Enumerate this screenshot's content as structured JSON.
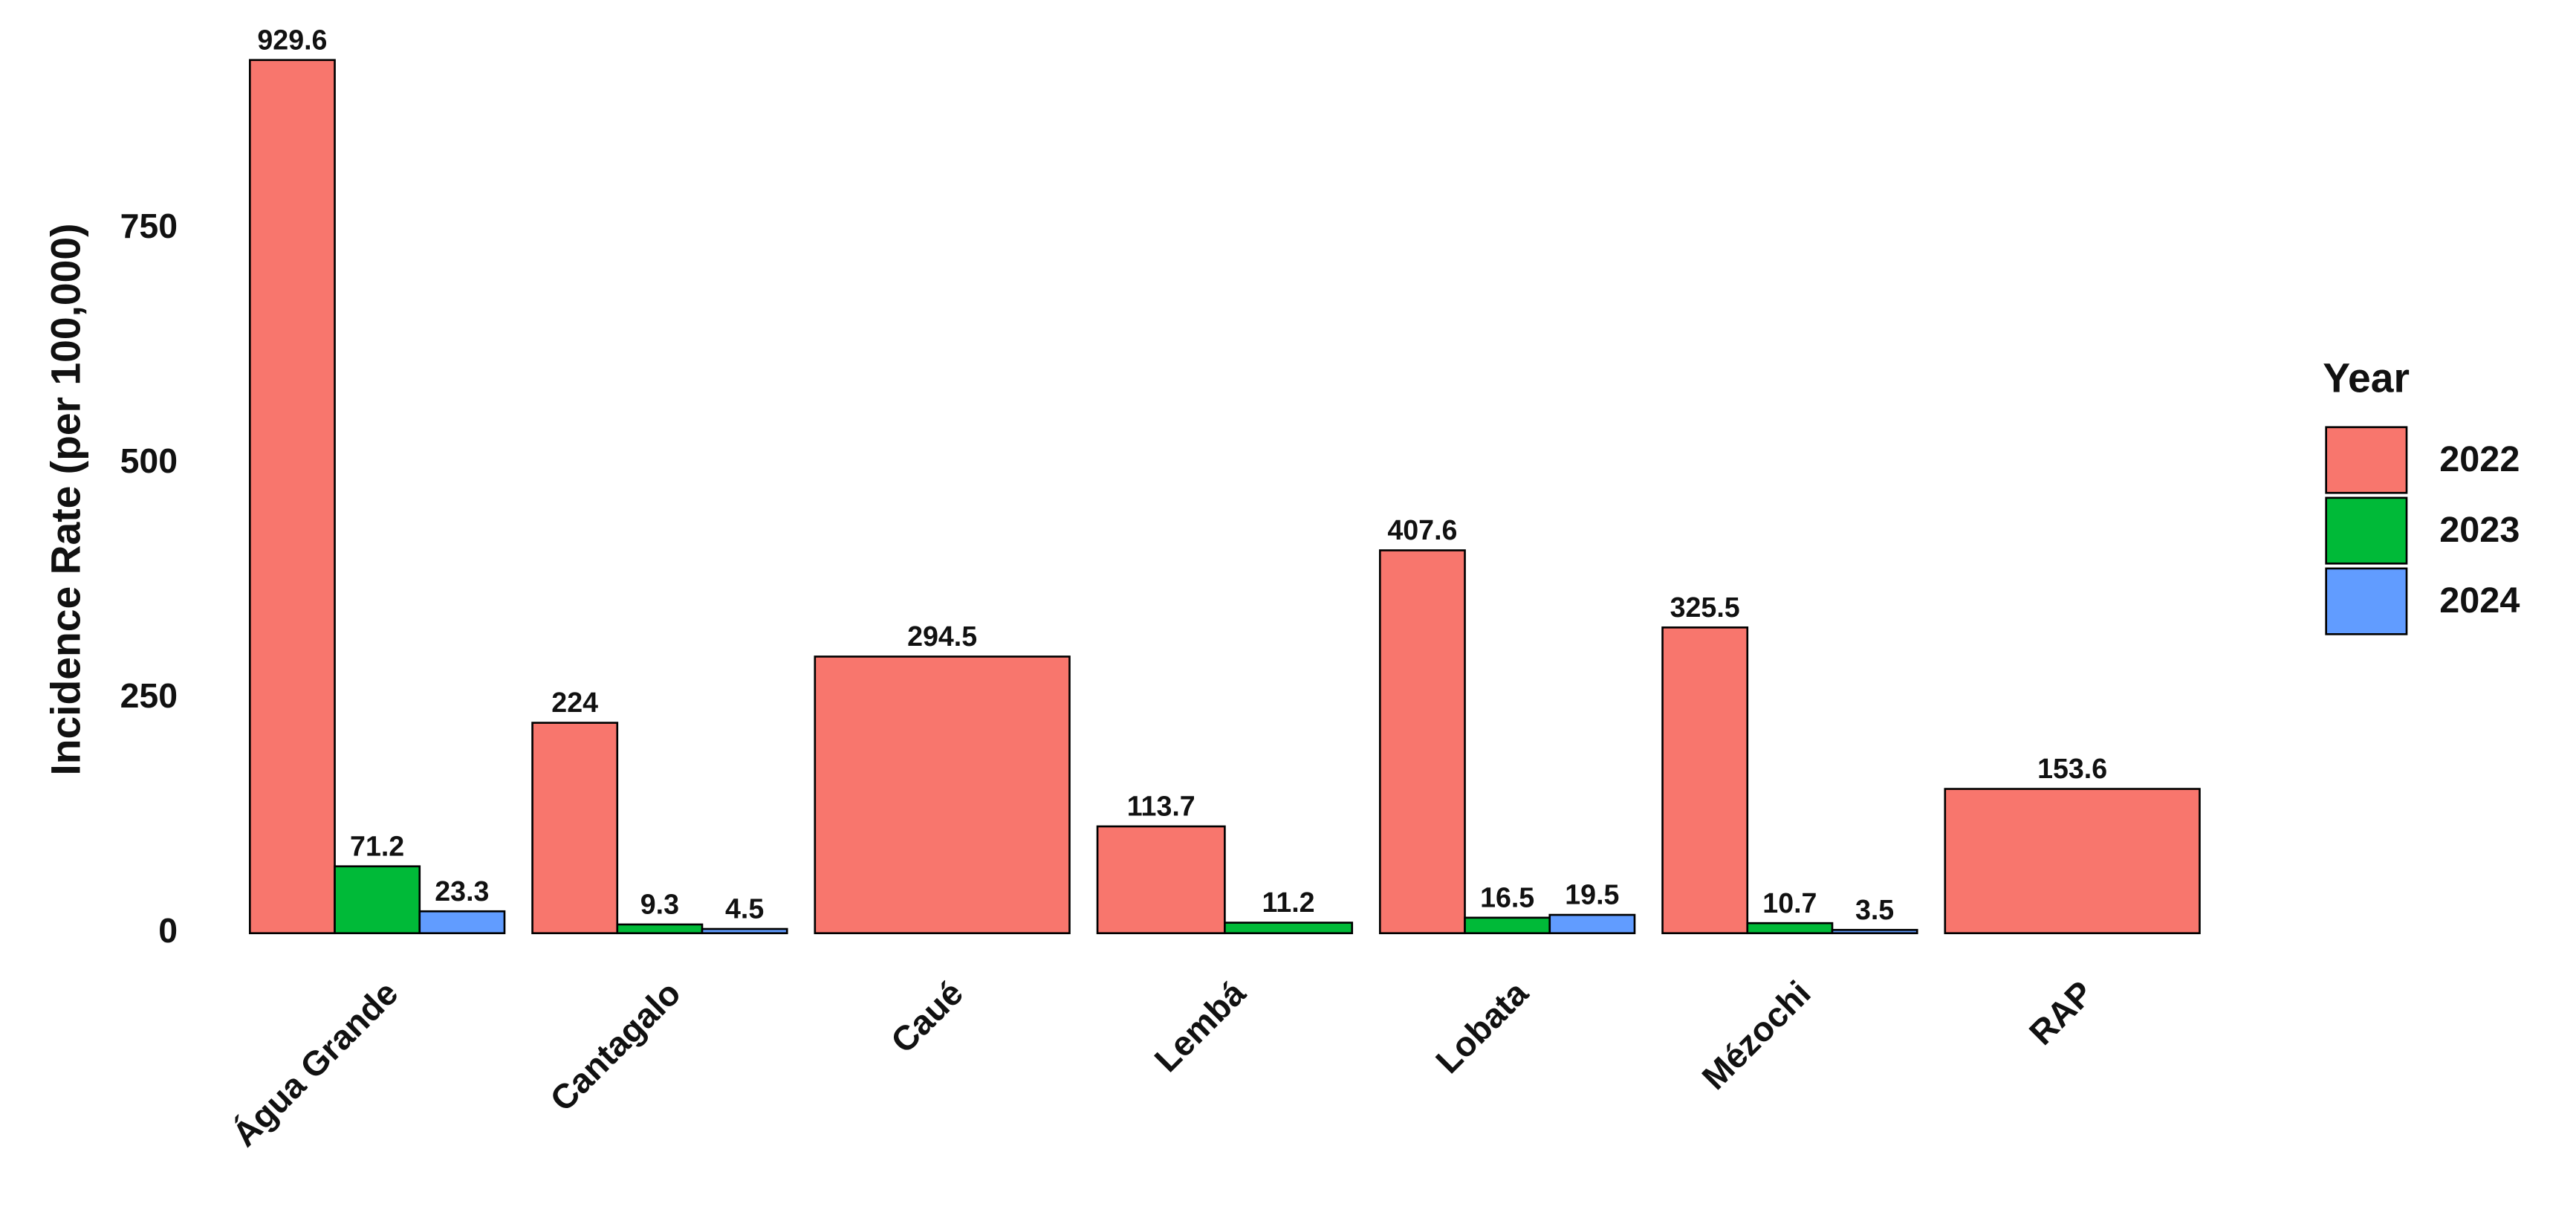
{
  "chart_data": {
    "type": "bar",
    "y_label": "Incidence Rate (per 100,000)",
    "legend_title": "Year",
    "legend_position": "right",
    "categories": [
      "Água Grande",
      "Cantagalo",
      "Caué",
      "Lembá",
      "Lobata",
      "Mézochi",
      "RAP"
    ],
    "series": [
      {
        "name": "2022",
        "color": "#F8766D",
        "values": [
          929.6,
          224,
          294.5,
          113.7,
          407.6,
          325.5,
          153.6
        ]
      },
      {
        "name": "2023",
        "color": "#00BA38",
        "values": [
          71.2,
          9.3,
          null,
          11.2,
          16.5,
          10.7,
          null
        ]
      },
      {
        "name": "2024",
        "color": "#619CFF",
        "values": [
          23.3,
          4.5,
          null,
          null,
          19.5,
          3.5,
          null
        ]
      }
    ],
    "ylim": [
      0,
      976
    ],
    "yticks": [
      0,
      250,
      500,
      750
    ]
  }
}
